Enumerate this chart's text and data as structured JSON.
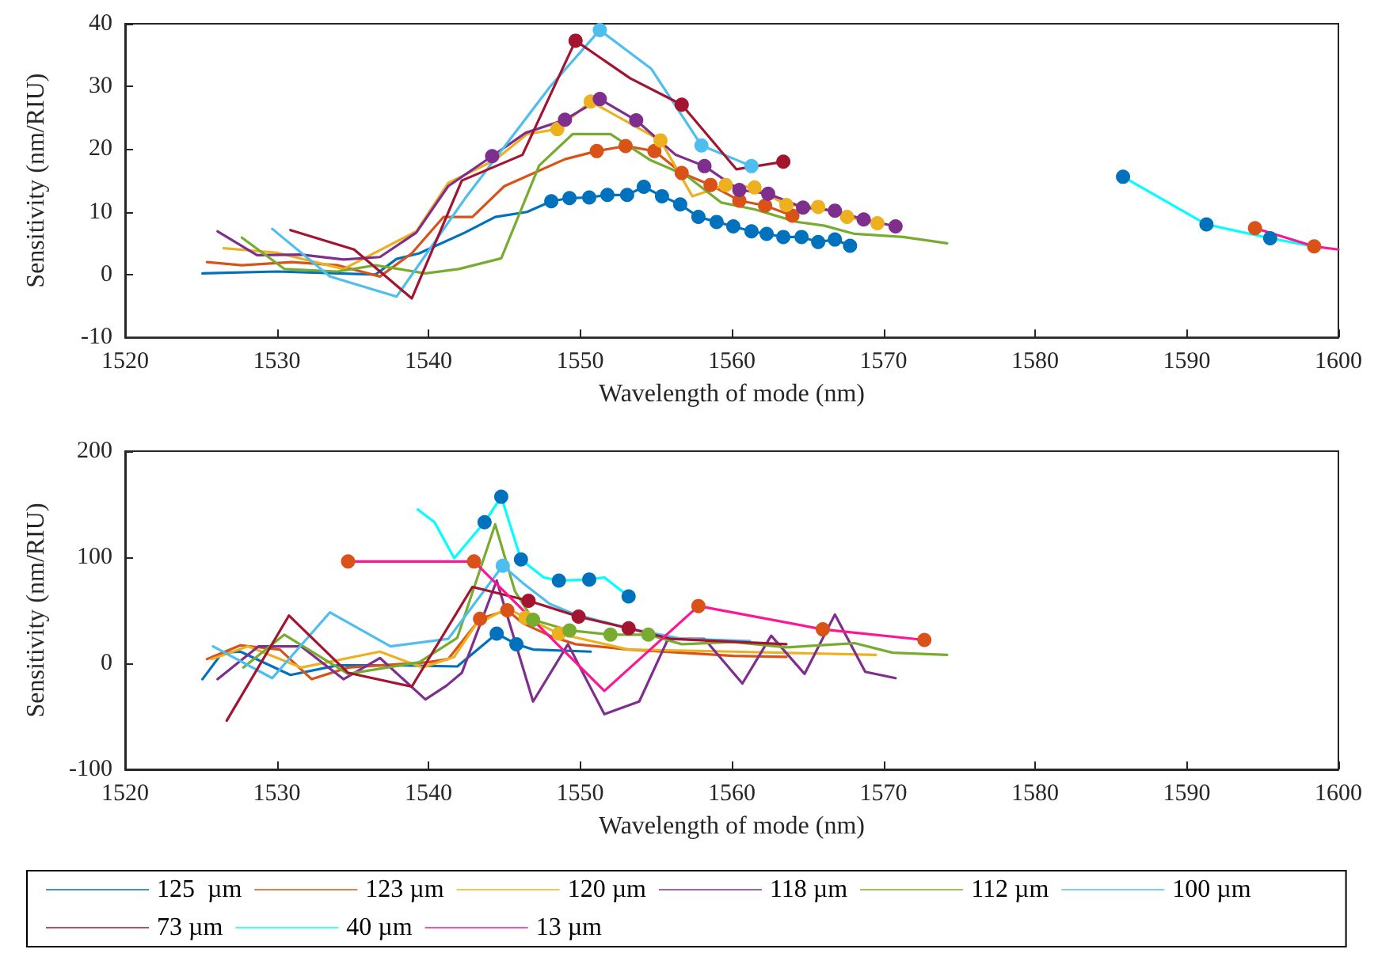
{
  "chart_data": [
    {
      "type": "line",
      "xlabel": "Wavelength of mode (nm)",
      "ylabel": "Sensitivity (nm/RIU)",
      "xlim": [
        1520,
        1600
      ],
      "xticks": [
        1520,
        1530,
        1540,
        1550,
        1560,
        1570,
        1580,
        1590,
        1600
      ],
      "ylim": [
        -10,
        40
      ],
      "yticks": [
        -10,
        0,
        10,
        20,
        30,
        40
      ],
      "grid": false,
      "legend": false,
      "marker": "none",
      "series": [
        {
          "color": "#0072bd",
          "x": [
            1525.1,
            1530,
            1536.5,
            1537.9,
            1539.4,
            1542.4,
            1544.4,
            1546.5,
            1548.1,
            1549.3,
            1550.6,
            1551.8,
            1553.1,
            1554.2,
            1555.4,
            1556.6,
            1557.8,
            1559.0,
            1560.1,
            1561.3,
            1562.3,
            1563.4,
            1564.6,
            1565.7,
            1566.8,
            1567.8
          ],
          "values": [
            0.2,
            0.5,
            0,
            2.5,
            3.4,
            6.7,
            9.2,
            10,
            11.7,
            12.2,
            12.3,
            12.7,
            12.7,
            14.0,
            12.5,
            11.2,
            9.2,
            8.4,
            7.7,
            6.9,
            6.5,
            6.0,
            6.0,
            5.2,
            5.6,
            4.6
          ]
        },
        {
          "color": "#d95319",
          "x": [
            1525.4,
            1527.7,
            1531,
            1534,
            1536.8,
            1538.9,
            1541,
            1542.9,
            1545,
            1549,
            1551.1,
            1553.0,
            1554.9,
            1556.7,
            1558.6,
            1560.5,
            1562.2,
            1564.0
          ],
          "values": [
            2,
            1.5,
            2,
            1.5,
            -0.3,
            3.4,
            9.2,
            9.2,
            14.1,
            18.4,
            19.7,
            20.5,
            19.7,
            16.2,
            14.3,
            11.8,
            11.0,
            9.4
          ]
        },
        {
          "color": "#edb120",
          "x": [
            1526.5,
            1530,
            1534.4,
            1539.2,
            1541.3,
            1544.4,
            1546.5,
            1548.5,
            1550.7,
            1555.3,
            1557.4,
            1559.6,
            1561.5,
            1563.6,
            1565.7,
            1567.6,
            1569.6
          ],
          "values": [
            4.2,
            3.5,
            0.9,
            6.9,
            14.6,
            18.3,
            22.4,
            23.2,
            27.6,
            21.4,
            12.5,
            14.3,
            13.9,
            11.1,
            10.8,
            9.2,
            8.2
          ]
        },
        {
          "color": "#7e2f8e",
          "x": [
            1526.1,
            1528.7,
            1531.6,
            1534.4,
            1536.8,
            1539.2,
            1541.3,
            1544.2,
            1546.4,
            1549,
            1551.3,
            1553.7,
            1556.3,
            1558.2,
            1560.5,
            1562.4,
            1564.7,
            1566.8,
            1568.7,
            1570.8
          ],
          "values": [
            6.9,
            3.1,
            3.2,
            2.4,
            2.8,
            6.7,
            14.1,
            18.9,
            22.6,
            24.7,
            28.0,
            24.6,
            19.1,
            17.3,
            13.5,
            12.9,
            10.7,
            10.2,
            8.8,
            7.7
          ]
        },
        {
          "color": "#77ac30",
          "x": [
            1527.7,
            1530.5,
            1534,
            1536.5,
            1539.8,
            1542,
            1544.8,
            1547.3,
            1549.5,
            1552.0,
            1554.6,
            1557.0,
            1559.3,
            1561.5,
            1564.3,
            1566.1,
            1568.1,
            1571.3,
            1574.2
          ],
          "values": [
            5.9,
            0.9,
            0.5,
            1.5,
            0.2,
            0.9,
            2.6,
            17.4,
            22.4,
            22.4,
            18.3,
            15.8,
            11.5,
            10.4,
            8.4,
            7.8,
            6.5,
            6.0,
            5.0
          ]
        },
        {
          "color": "#4dbeee",
          "x": [
            1529.7,
            1533.5,
            1537.9,
            1542.4,
            1548.0,
            1551.3,
            1554.7,
            1558.0,
            1561.3
          ],
          "values": [
            7.3,
            -0.3,
            -3.5,
            12.1,
            29.9,
            39.0,
            32.8,
            20.6,
            17.3
          ]
        },
        {
          "color": "#a2142f",
          "x": [
            1530.9,
            1535.1,
            1538.9,
            1542.2,
            1546.2,
            1549.7,
            1553.3,
            1556.7,
            1560.3,
            1563.4
          ],
          "values": [
            7.1,
            4.0,
            -3.8,
            15.0,
            19.1,
            37.3,
            31.3,
            27.1,
            16.8,
            18.0
          ]
        },
        {
          "color": "#00ffff",
          "x": [
            1585.8,
            1591.3,
            1595.5,
            1598.4
          ],
          "values": [
            15.6,
            8.0,
            5.8,
            4.5
          ]
        },
        {
          "color": "#ff1493",
          "x": [
            1594.5,
            1598.4,
            1600
          ],
          "values": [
            7.4,
            4.5,
            4.0
          ]
        },
        {
          "type": "scatter",
          "marker": "circle",
          "color": "#0072bd",
          "x": [
            1548.1,
            1549.3,
            1550.6,
            1551.8,
            1553.1,
            1554.2,
            1555.4,
            1556.6,
            1557.8,
            1559.0,
            1560.1,
            1561.3,
            1562.3,
            1563.4,
            1564.6,
            1565.7,
            1566.8,
            1567.8,
            1585.8,
            1591.3,
            1595.5
          ],
          "values": [
            11.7,
            12.2,
            12.3,
            12.7,
            12.7,
            14.0,
            12.5,
            11.2,
            9.2,
            8.4,
            7.7,
            6.9,
            6.5,
            6.0,
            6.0,
            5.2,
            5.6,
            4.6,
            15.6,
            8.0,
            5.8
          ]
        },
        {
          "type": "scatter",
          "marker": "circle",
          "color": "#d95319",
          "x": [
            1551.1,
            1553.0,
            1554.9,
            1556.7,
            1558.6,
            1560.5,
            1562.2,
            1564.0,
            1594.5,
            1598.4
          ],
          "values": [
            19.7,
            20.5,
            19.7,
            16.2,
            14.3,
            11.8,
            11.0,
            9.4,
            7.4,
            4.5
          ]
        },
        {
          "type": "scatter",
          "marker": "circle",
          "color": "#edb120",
          "x": [
            1548.5,
            1550.7,
            1555.3,
            1559.6,
            1561.5,
            1563.6,
            1565.7,
            1567.6,
            1569.6
          ],
          "values": [
            23.2,
            27.6,
            21.4,
            14.3,
            13.9,
            11.1,
            10.8,
            9.2,
            8.2
          ]
        },
        {
          "type": "scatter",
          "marker": "circle",
          "color": "#7e2f8e",
          "x": [
            1544.2,
            1549,
            1551.3,
            1553.7,
            1558.2,
            1560.5,
            1562.4,
            1564.7,
            1566.8,
            1568.7,
            1570.8
          ],
          "values": [
            18.9,
            24.7,
            28.0,
            24.6,
            17.3,
            13.5,
            12.9,
            10.7,
            10.2,
            8.8,
            7.7
          ]
        },
        {
          "type": "scatter",
          "marker": "circle",
          "color": "#4dbeee",
          "x": [
            1551.3,
            1558.0,
            1561.3
          ],
          "values": [
            39.0,
            20.6,
            17.3
          ]
        },
        {
          "type": "scatter",
          "marker": "circle",
          "color": "#a2142f",
          "x": [
            1549.7,
            1556.7,
            1563.4
          ],
          "values": [
            37.3,
            27.1,
            18.0
          ]
        }
      ]
    },
    {
      "type": "line",
      "xlabel": "Wavelength of mode (nm)",
      "ylabel": "Sensitivity (nm/RIU)",
      "xlim": [
        1520,
        1600
      ],
      "xticks": [
        1520,
        1530,
        1540,
        1550,
        1560,
        1570,
        1580,
        1590,
        1600
      ],
      "ylim": [
        -100,
        200
      ],
      "yticks": [
        -100,
        0,
        100,
        200
      ],
      "grid": false,
      "legend": "bottom",
      "marker": "none",
      "series": [
        {
          "name": "125  µm",
          "color": "#0072bd",
          "x": [
            1525.1,
            1526.4,
            1527.6,
            1530.9,
            1534,
            1538.2,
            1541.9,
            1544.5,
            1545.8,
            1546.9,
            1550.7
          ],
          "values": [
            -15,
            10,
            11,
            -11,
            -2,
            -2,
            -3,
            28,
            18,
            13,
            11
          ]
        },
        {
          "name": "123 µm",
          "color": "#d95319",
          "x": [
            1525.4,
            1527.6,
            1530.2,
            1532.3,
            1534.7,
            1540,
            1541.3,
            1543.4,
            1545.2,
            1546.2,
            1548,
            1549.7,
            1553.2,
            1556.7,
            1560.1,
            1563.6
          ],
          "values": [
            4,
            17,
            13,
            -15,
            -4,
            1,
            4,
            42,
            50,
            38,
            26,
            18,
            13,
            10,
            7,
            6
          ]
        },
        {
          "name": "120 µm",
          "color": "#edb120",
          "x": [
            1525.7,
            1528.1,
            1531.6,
            1536.8,
            1539.6,
            1541.7,
            1543.1,
            1545.2,
            1546.4,
            1548.6,
            1553.2,
            1560.1,
            1569.5
          ],
          "values": [
            4,
            16,
            -4,
            11,
            -4,
            6,
            36,
            52,
            43,
            28,
            13,
            11,
            8
          ]
        },
        {
          "name": "118 µm",
          "color": "#7e2f8e",
          "x": [
            1526.1,
            1528.8,
            1531.6,
            1534.4,
            1536.8,
            1539.8,
            1541.2,
            1542.2,
            1544.5,
            1546.9,
            1549.2,
            1551.6,
            1553.9,
            1555.8,
            1558.2,
            1560.7,
            1562.6,
            1564.8,
            1566.8,
            1568.8,
            1570.8
          ],
          "values": [
            -15,
            16,
            16,
            -15,
            5,
            -34,
            -21,
            -9,
            78,
            -36,
            18,
            -48,
            -36,
            23,
            23,
            -19,
            26,
            -10,
            46,
            -8,
            -14
          ]
        },
        {
          "name": "112 µm",
          "color": "#77ac30",
          "x": [
            1527.8,
            1530.5,
            1534.7,
            1539.4,
            1541.9,
            1544.4,
            1545.7,
            1546.9,
            1549.3,
            1552.0,
            1554.5,
            1556.7,
            1560.1,
            1563.6,
            1568.1,
            1570.6,
            1574.2
          ],
          "values": [
            -4,
            27,
            -10,
            1,
            24,
            131,
            68,
            41,
            31,
            27,
            27,
            18,
            20,
            15,
            19,
            10,
            8
          ]
        },
        {
          "name": "100 µm",
          "color": "#4dbeee",
          "x": [
            1525.8,
            1529.7,
            1533.5,
            1537.5,
            1541.3,
            1544.9,
            1546.2,
            1548,
            1549.7,
            1553.2,
            1556.7,
            1561.2
          ],
          "values": [
            16,
            -14,
            48,
            16,
            23,
            92,
            76,
            56,
            46,
            33,
            23,
            21
          ]
        },
        {
          "name": "73 µm",
          "color": "#a2142f",
          "x": [
            1526.7,
            1530.8,
            1534.7,
            1538.9,
            1542.9,
            1546.6,
            1549.9,
            1553.2,
            1556.0,
            1563.6
          ],
          "values": [
            -54,
            45,
            -9,
            -22,
            72,
            59,
            44,
            33,
            23,
            18
          ]
        },
        {
          "name": "40 µm",
          "color": "#00ffff",
          "x": [
            1539.3,
            1540.4,
            1541.7,
            1543.7,
            1544.8,
            1546.1,
            1547.6,
            1548.6,
            1550.6,
            1551.6,
            1553.2
          ],
          "values": [
            145,
            133,
            99,
            133,
            157,
            98,
            81,
            78,
            79,
            81,
            63
          ]
        },
        {
          "name": "13 µm",
          "color": "#ff1493",
          "x": [
            1534.7,
            1543.0,
            1551.6,
            1557.8,
            1566.0,
            1572.7
          ],
          "values": [
            96,
            96,
            -26,
            54,
            32,
            22
          ]
        },
        {
          "type": "scatter",
          "marker": "circle",
          "color": "#0072bd",
          "x": [
            1544.5,
            1545.8,
            1543.7,
            1544.8,
            1546.1,
            1548.6,
            1550.6,
            1553.2
          ],
          "values": [
            28,
            18,
            133,
            157,
            98,
            78,
            79,
            63
          ]
        },
        {
          "type": "scatter",
          "marker": "circle",
          "color": "#d95319",
          "x": [
            1543.4,
            1545.2,
            1534.7,
            1543.0,
            1557.8,
            1566.0,
            1572.7
          ],
          "values": [
            42,
            50,
            96,
            96,
            54,
            32,
            22
          ]
        },
        {
          "type": "scatter",
          "marker": "circle",
          "color": "#edb120",
          "x": [
            1546.4,
            1548.6
          ],
          "values": [
            43,
            28
          ]
        },
        {
          "type": "scatter",
          "marker": "circle",
          "color": "#77ac30",
          "x": [
            1546.9,
            1549.3,
            1552.0,
            1554.5
          ],
          "values": [
            41,
            31,
            27,
            27
          ]
        },
        {
          "type": "scatter",
          "marker": "circle",
          "color": "#4dbeee",
          "x": [
            1544.9
          ],
          "values": [
            92
          ]
        },
        {
          "type": "scatter",
          "marker": "circle",
          "color": "#a2142f",
          "x": [
            1546.6,
            1549.9,
            1553.2
          ],
          "values": [
            59,
            44,
            33
          ]
        }
      ]
    }
  ]
}
